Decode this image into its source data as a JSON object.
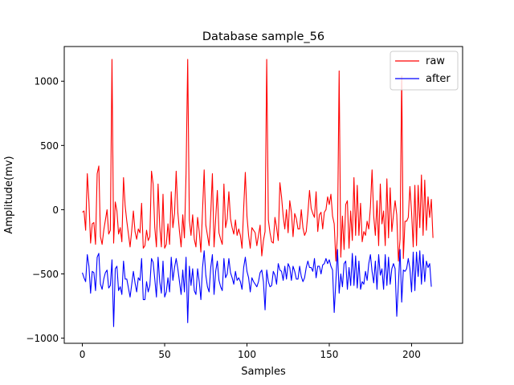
{
  "chart_data": {
    "type": "line",
    "title": "Database sample_56",
    "xlabel": "Samples",
    "ylabel": "Amplitude(mv)",
    "xlim": [
      -11,
      231
    ],
    "ylim": [
      -1040,
      1270
    ],
    "xticks": [
      0,
      50,
      100,
      150,
      200
    ],
    "yticks": [
      -1000,
      -500,
      0,
      500,
      1000
    ],
    "grid": false,
    "legend_position": "top-right",
    "series": [
      {
        "name": "raw",
        "color": "#ff0000",
        "values": [
          -20,
          -10,
          -160,
          280,
          60,
          -260,
          -110,
          -100,
          -270,
          280,
          340,
          -210,
          -270,
          -160,
          -80,
          0,
          -190,
          -160,
          1170,
          -260,
          60,
          -10,
          -190,
          -140,
          -250,
          250,
          30,
          -90,
          -190,
          -290,
          -160,
          -10,
          -170,
          -230,
          -150,
          -180,
          50,
          -300,
          -280,
          -160,
          -240,
          -210,
          300,
          200,
          -140,
          -290,
          200,
          -130,
          -290,
          120,
          -300,
          -270,
          -110,
          -270,
          140,
          -140,
          -30,
          300,
          -20,
          -170,
          -290,
          -40,
          -220,
          280,
          1170,
          -80,
          -200,
          -40,
          -230,
          -290,
          -60,
          -170,
          -330,
          -10,
          310,
          -120,
          -200,
          -280,
          -30,
          280,
          -290,
          -70,
          150,
          -180,
          -230,
          -270,
          200,
          -140,
          -70,
          140,
          -70,
          -140,
          -190,
          -80,
          -200,
          -150,
          -200,
          -300,
          10,
          290,
          -50,
          -200,
          -300,
          -140,
          -160,
          -180,
          -280,
          -200,
          -120,
          -360,
          -240,
          -170,
          1170,
          -80,
          -180,
          -250,
          -260,
          -60,
          -140,
          -240,
          210,
          100,
          -50,
          -150,
          0,
          -180,
          70,
          -20,
          -210,
          -30,
          -70,
          -150,
          -150,
          0,
          -140,
          -200,
          -170,
          -30,
          150,
          10,
          -30,
          -60,
          140,
          -170,
          -40,
          -20,
          -150,
          -20,
          0,
          100,
          40,
          120,
          -50,
          -110,
          -400,
          -200,
          1080,
          -370,
          -50,
          -310,
          40,
          70,
          -300,
          -10,
          -240,
          250,
          -200,
          190,
          -200,
          50,
          -250,
          -170,
          -200,
          -90,
          -150,
          20,
          310,
          -50,
          -200,
          70,
          -280,
          200,
          -110,
          -10,
          -280,
          240,
          -220,
          170,
          -170,
          -40,
          70,
          -40,
          -400,
          -230,
          1040,
          -380,
          -90,
          -90,
          -60,
          180,
          -20,
          -290,
          190,
          -280,
          190,
          -140,
          270,
          -200,
          230,
          -160,
          100,
          -60,
          80,
          -220
        ]
      },
      {
        "name": "after",
        "color": "#0000ff",
        "values": [
          -490,
          -530,
          -560,
          -350,
          -440,
          -650,
          -480,
          -490,
          -630,
          -370,
          -340,
          -580,
          -620,
          -540,
          -490,
          -470,
          -610,
          -590,
          -390,
          -910,
          -460,
          -440,
          -630,
          -600,
          -660,
          -400,
          -540,
          -540,
          -610,
          -680,
          -580,
          -480,
          -570,
          -640,
          -530,
          -550,
          -380,
          -700,
          -700,
          -560,
          -640,
          -590,
          -380,
          -410,
          -540,
          -680,
          -370,
          -560,
          -650,
          -400,
          -680,
          -640,
          -530,
          -640,
          -370,
          -550,
          -450,
          -380,
          -460,
          -560,
          -660,
          -470,
          -640,
          -370,
          -880,
          -440,
          -590,
          -460,
          -630,
          -660,
          -460,
          -560,
          -700,
          -450,
          -320,
          -510,
          -600,
          -640,
          -450,
          -350,
          -660,
          -480,
          -400,
          -550,
          -600,
          -630,
          -380,
          -530,
          -500,
          -380,
          -490,
          -530,
          -580,
          -480,
          -550,
          -530,
          -560,
          -620,
          -450,
          -370,
          -480,
          -530,
          -640,
          -530,
          -560,
          -580,
          -600,
          -560,
          -490,
          -470,
          -560,
          -780,
          -470,
          -560,
          -600,
          -590,
          -480,
          -510,
          -580,
          -420,
          -470,
          -480,
          -550,
          -440,
          -540,
          -420,
          -450,
          -550,
          -440,
          -480,
          -540,
          -540,
          -440,
          -520,
          -560,
          -530,
          -450,
          -400,
          -450,
          -450,
          -480,
          -380,
          -530,
          -440,
          -440,
          -500,
          -430,
          -420,
          -380,
          -420,
          -390,
          -440,
          -470,
          -800,
          -560,
          -310,
          -650,
          -500,
          -600,
          -420,
          -400,
          -620,
          -450,
          -590,
          -340,
          -590,
          -360,
          -610,
          -400,
          -620,
          -560,
          -580,
          -480,
          -550,
          -420,
          -350,
          -480,
          -570,
          -400,
          -620,
          -350,
          -510,
          -460,
          -620,
          -350,
          -590,
          -370,
          -580,
          -460,
          -420,
          -460,
          -830,
          -580,
          -310,
          -720,
          -470,
          -480,
          -460,
          -380,
          -460,
          -640,
          -330,
          -630,
          -330,
          -520,
          -320,
          -580,
          -350,
          -560,
          -400,
          -450,
          -420,
          -600
        ]
      }
    ]
  }
}
